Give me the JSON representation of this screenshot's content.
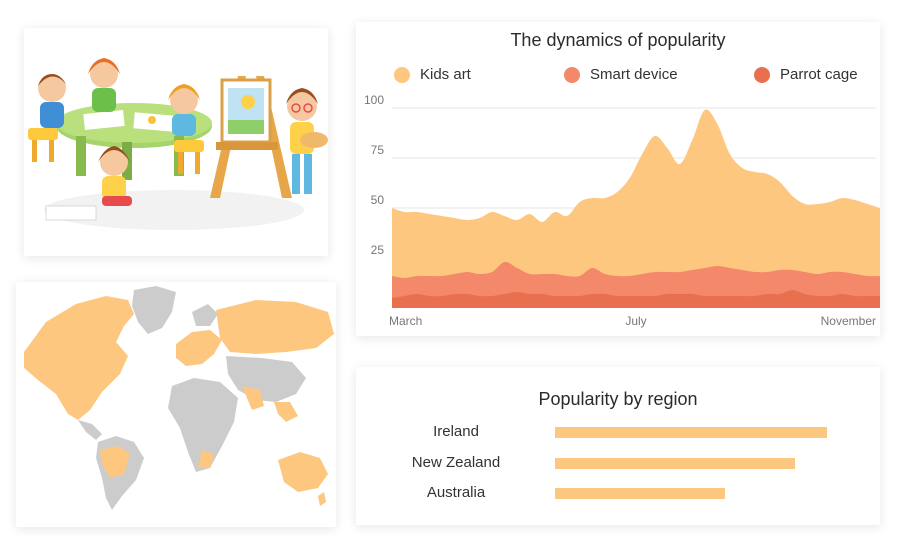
{
  "colors": {
    "kids_art": "#fec77f",
    "smart_device": "#f3886a",
    "parrot_cage": "#e8704f",
    "map_highlight": "#fec77f",
    "map_base": "#cccccc",
    "grid": "#e4e4e4"
  },
  "illustration": {
    "icon": "kids-painting-illustration"
  },
  "map": {
    "icon": "world-map-illustration"
  },
  "chart_data": [
    {
      "type": "area",
      "title": "The dynamics of popularity",
      "xlabel": "",
      "ylabel": "",
      "x_tick_labels": [
        "March",
        "July",
        "November"
      ],
      "y_ticks": [
        25,
        50,
        75,
        100
      ],
      "ylim": [
        0,
        100
      ],
      "stacked": false,
      "legend_position": "top",
      "series": [
        {
          "name": "Kids art",
          "color": "#fec77f",
          "values": [
            50,
            48,
            48,
            47,
            46,
            45,
            44,
            45,
            48,
            46,
            44,
            47,
            43,
            48,
            46,
            53,
            55,
            55,
            58,
            65,
            77,
            86,
            80,
            72,
            84,
            99,
            92,
            77,
            70,
            68,
            67,
            63,
            56,
            52,
            52,
            53,
            55,
            54,
            52,
            50
          ]
        },
        {
          "name": "Smart device",
          "color": "#f3886a",
          "values": [
            16,
            15,
            16,
            16,
            16,
            17,
            18,
            17,
            18,
            23,
            20,
            17,
            17,
            17,
            16,
            16,
            20,
            17,
            16,
            16,
            17,
            18,
            18,
            18,
            19,
            20,
            21,
            20,
            19,
            18,
            18,
            19,
            19,
            18,
            17,
            18,
            18,
            17,
            16,
            16
          ]
        },
        {
          "name": "Parrot cage",
          "color": "#e8704f",
          "values": [
            5,
            6,
            7,
            6,
            6,
            7,
            7,
            6,
            6,
            7,
            8,
            7,
            7,
            6,
            6,
            6,
            7,
            7,
            6,
            6,
            6,
            6,
            7,
            7,
            7,
            6,
            6,
            6,
            6,
            6,
            7,
            7,
            9,
            7,
            6,
            6,
            7,
            6,
            6,
            6
          ]
        }
      ]
    },
    {
      "type": "bar",
      "orientation": "horizontal",
      "title": "Popularity by region",
      "categories": [
        "Ireland",
        "New Zealand",
        "Australia"
      ],
      "values": [
        85,
        75,
        53
      ],
      "xlim": [
        0,
        100
      ],
      "color": "#fec77f"
    }
  ]
}
